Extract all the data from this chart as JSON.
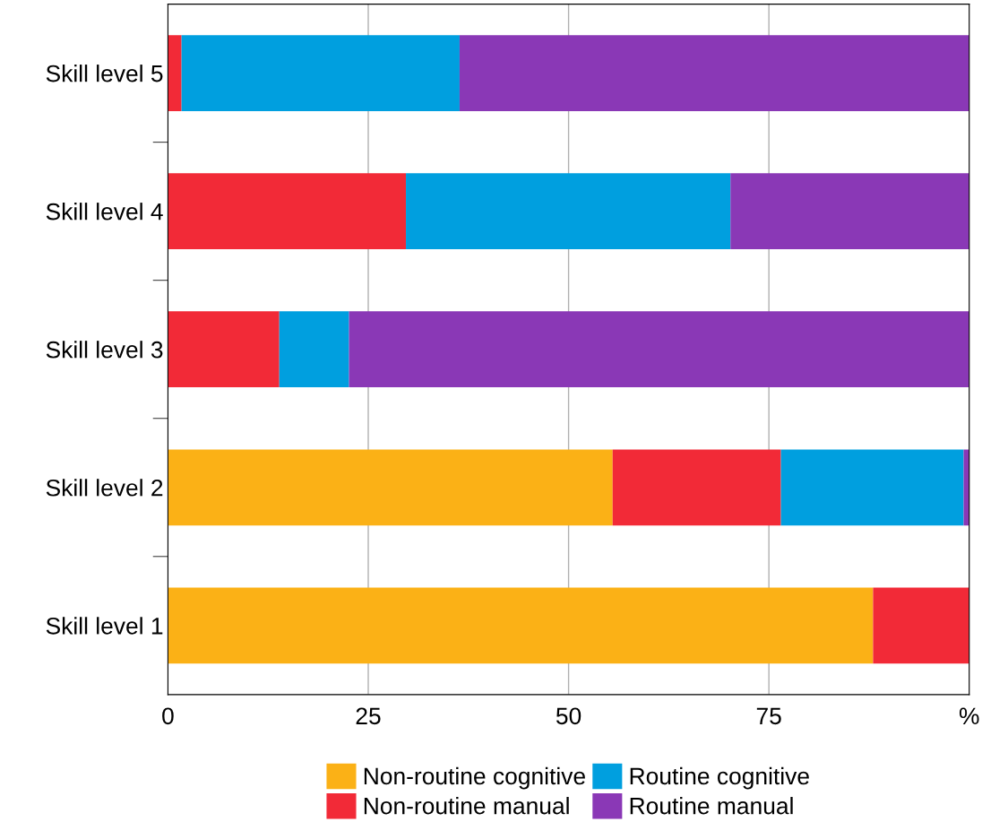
{
  "chart_data": {
    "type": "bar",
    "orientation": "horizontal",
    "stacked": true,
    "categories": [
      "Skill level 5",
      "Skill level 4",
      "Skill level 3",
      "Skill level 2",
      "Skill level 1"
    ],
    "series": [
      {
        "name": "Non-routine cognitive",
        "color": "#fbb116",
        "values": [
          0,
          0,
          0,
          55.5,
          88.0
        ]
      },
      {
        "name": "Non-routine manual",
        "color": "#f22a37",
        "values": [
          1.7,
          29.7,
          13.9,
          21.0,
          12.0
        ]
      },
      {
        "name": "Routine cognitive",
        "color": "#009fdf",
        "values": [
          34.7,
          40.5,
          8.7,
          22.8,
          0
        ]
      },
      {
        "name": "Routine manual",
        "color": "#8a38b6",
        "values": [
          63.6,
          29.8,
          77.4,
          0.7,
          0
        ]
      }
    ],
    "xlim": [
      0,
      100
    ],
    "xticks": [
      0,
      25,
      50,
      75,
      {
        "value": 100,
        "label": "%"
      }
    ],
    "grid": "x",
    "legend": "bottom"
  }
}
